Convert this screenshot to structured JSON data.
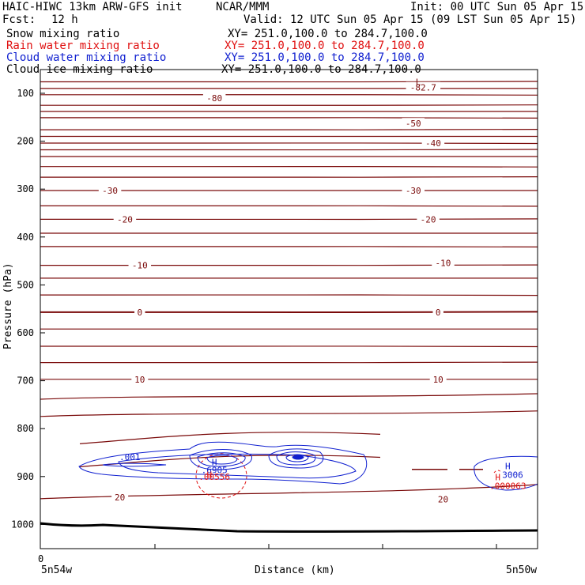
{
  "header": {
    "model": "HAIC-HIWC 13km ARW-GFS init",
    "org": "NCAR/MMM",
    "init": "Init: 00 UTC Sun 05 Apr 15",
    "fcst_label": "Fcst:",
    "fcst_value": "12 h",
    "valid": "Valid: 12 UTC Sun 05 Apr 15 (09 LST Sun 05 Apr 15)"
  },
  "fields": [
    {
      "name": "Snow mixing ratio",
      "xy": "XY= 251.0,100.0 to 284.7,100.0",
      "color": "#000000"
    },
    {
      "name": "Rain water mixing ratio",
      "xy": "XY= 251.0,100.0 to 284.7,100.0",
      "color": "#e01010"
    },
    {
      "name": "Cloud water mixing ratio",
      "xy": "XY= 251.0,100.0 to 284.7,100.0",
      "color": "#1020d0"
    },
    {
      "name": "Cloud ice mixing ratio",
      "xy": "XY= 251.0,100.0 to 284.7,100.0",
      "color": "#000000"
    }
  ],
  "chart_data": {
    "type": "contour cross-section",
    "ylabel": "Pressure (hPa)",
    "xlabel": "Distance (km)",
    "ylim": [
      1050,
      50
    ],
    "yticks": [
      100,
      200,
      300,
      400,
      500,
      600,
      700,
      800,
      900,
      1000
    ],
    "xtick_first": "0",
    "x_end_labels": [
      "5n54w",
      "5n50w"
    ],
    "colors": {
      "temperature": "#7a0a0a",
      "rain": "#e01010",
      "cloud_water": "#1020d0",
      "ground": "#000000"
    },
    "temperature_labels": [
      {
        "text": "-80",
        "x": 0.35,
        "p": 110
      },
      {
        "text": "-82.7",
        "x": 0.77,
        "p": 88
      },
      {
        "text": "-50",
        "x": 0.75,
        "p": 163
      },
      {
        "text": "-40",
        "x": 0.79,
        "p": 204
      },
      {
        "text": "-30",
        "x": 0.14,
        "p": 303
      },
      {
        "text": "-30",
        "x": 0.75,
        "p": 303
      },
      {
        "text": "-20",
        "x": 0.17,
        "p": 363
      },
      {
        "text": "-20",
        "x": 0.78,
        "p": 363
      },
      {
        "text": "-10",
        "x": 0.2,
        "p": 459
      },
      {
        "text": "-10",
        "x": 0.81,
        "p": 454
      },
      {
        "text": "0",
        "x": 0.2,
        "p": 557
      },
      {
        "text": "0",
        "x": 0.8,
        "p": 557
      },
      {
        "text": "10",
        "x": 0.2,
        "p": 697
      },
      {
        "text": "10",
        "x": 0.8,
        "p": 697
      },
      {
        "text": "20",
        "x": 0.16,
        "p": 943
      },
      {
        "text": "20",
        "x": 0.81,
        "p": 947
      }
    ],
    "extrema": [
      {
        "text": "L",
        "x": 0.76,
        "p": 76,
        "color": "#7a0a0a"
      },
      {
        "text": "H",
        "x": 0.35,
        "p": 870,
        "color": "#1020d0"
      },
      {
        "text": ".6905",
        "x": 0.35,
        "p": 886,
        "color": "#1020d0"
      },
      {
        "text": "H",
        "x": 0.34,
        "p": 896,
        "color": "#e01010"
      },
      {
        "text": ".00556",
        "x": 0.35,
        "p": 900,
        "color": "#e01010"
      },
      {
        "text": ".001",
        "x": 0.18,
        "p": 859,
        "color": "#1020d0"
      },
      {
        "text": "H",
        "x": 0.94,
        "p": 878,
        "color": "#1020d0"
      },
      {
        "text": "3006",
        "x": 0.95,
        "p": 896,
        "color": "#1020d0"
      },
      {
        "text": "H",
        "x": 0.92,
        "p": 901,
        "color": "#e01010"
      },
      {
        "text": ".000063",
        "x": 0.94,
        "p": 919,
        "color": "#e01010"
      }
    ]
  }
}
